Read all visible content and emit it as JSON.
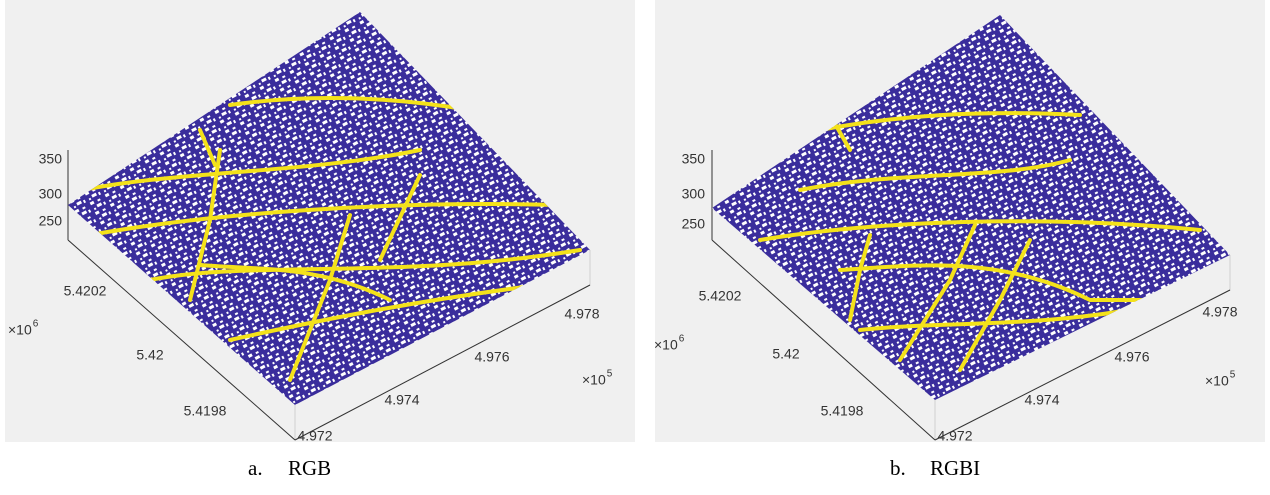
{
  "panels": [
    {
      "caption_label": "a.",
      "caption": "RGB",
      "z_ticks": [
        "350",
        "300",
        "250"
      ],
      "y_ticks": [
        "5.4202",
        "5.42",
        "5.4198"
      ],
      "y_exponent": {
        "base": "×10",
        "power": "6"
      },
      "x_ticks": [
        "4.972",
        "4.974",
        "4.976",
        "4.978"
      ],
      "x_exponent": {
        "base": "×10",
        "power": "5"
      }
    },
    {
      "caption_label": "b.",
      "caption": "RGBI",
      "z_ticks": [
        "350",
        "300",
        "250"
      ],
      "y_ticks": [
        "5.4202",
        "5.42",
        "5.4198"
      ],
      "y_exponent": {
        "base": "×10",
        "power": "6"
      },
      "x_ticks": [
        "4.972",
        "4.974",
        "4.976",
        "4.978"
      ],
      "x_exponent": {
        "base": "×10",
        "power": "5"
      }
    }
  ]
}
